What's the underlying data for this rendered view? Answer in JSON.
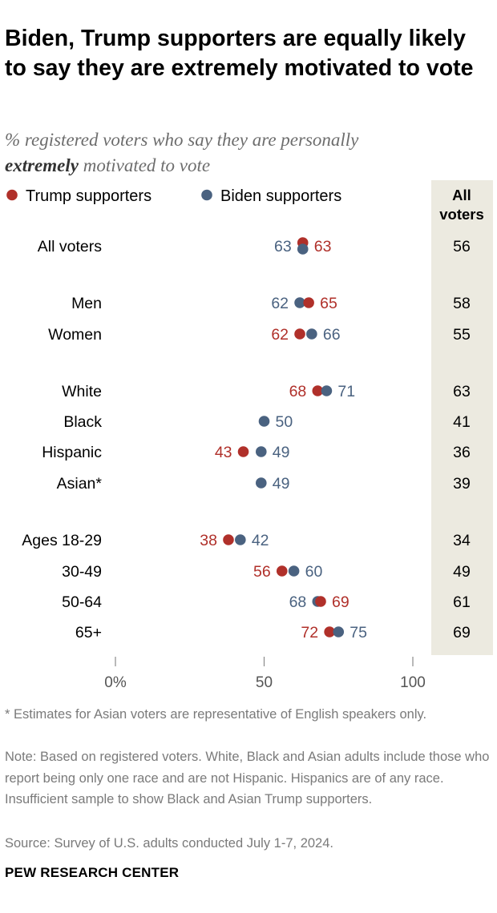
{
  "title": "Biden, Trump supporters are equally likely to say they are extremely motivated to vote",
  "subtitle": {
    "prefix": "% registered voters who say they are personally",
    "emphasis": "extremely",
    "suffix": "motivated to vote"
  },
  "colors": {
    "trump": "#b0302a",
    "biden": "#4a6280",
    "all_voters_panel": "#eceae0",
    "axis": "#8a8a8a"
  },
  "chart_data": {
    "type": "scatter",
    "subtype": "dot-plot",
    "legend": [
      "Trump supporters",
      "Biden supporters"
    ],
    "legend_position": "top-left",
    "column_header": "All voters",
    "xlim": [
      0,
      100
    ],
    "x_ticks": [
      "0%",
      "50",
      "100"
    ],
    "x_tick_values": [
      0,
      50,
      100
    ],
    "series": [
      {
        "name": "Trump supporters",
        "values": [
          63,
          65,
          62,
          68,
          null,
          43,
          null,
          38,
          56,
          69,
          72
        ]
      },
      {
        "name": "Biden supporters",
        "values": [
          63,
          62,
          66,
          71,
          50,
          49,
          49,
          42,
          60,
          68,
          75
        ]
      }
    ],
    "categories": [
      "All voters",
      "Men",
      "Women",
      "White",
      "Black",
      "Hispanic",
      "Asian*",
      "Ages 18-29",
      "30-49",
      "50-64",
      "65+"
    ],
    "all_voters": [
      56,
      58,
      55,
      63,
      41,
      36,
      39,
      34,
      49,
      61,
      69
    ]
  },
  "notes": {
    "footnote": "* Estimates for Asian voters are representative of English speakers only.",
    "note": "Note: Based on registered voters. White, Black and Asian adults include those who report being only one race and are not Hispanic. Hispanics are of any race. Insufficient sample to show Black and Asian Trump supporters.",
    "source": "Source: Survey of U.S. adults conducted July 1-7, 2024."
  },
  "brand": "PEW RESEARCH CENTER"
}
